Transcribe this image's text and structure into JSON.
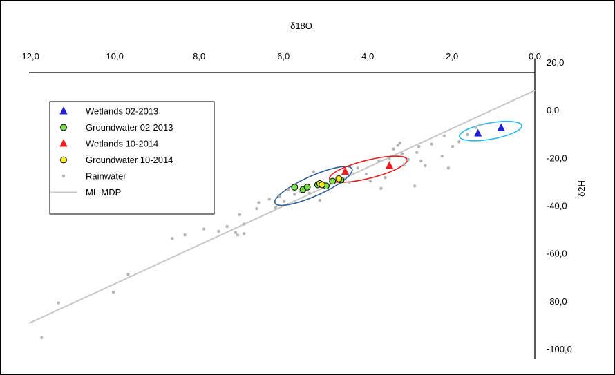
{
  "chart_data": {
    "type": "scatter",
    "xlabel": "δ18O",
    "ylabel": "δ2H",
    "xlim": [
      -12.0,
      0.0
    ],
    "ylim": [
      -100.0,
      20.0
    ],
    "x_ticks": [
      "-12,0",
      "-10,0",
      "-8,0",
      "-6,0",
      "-4,0",
      "-2,0",
      "0,0"
    ],
    "y_ticks": [
      "20,0",
      "0,0",
      "-20,0",
      "-40,0",
      "-60,0",
      "-80,0",
      "-100,0"
    ],
    "x_axis_position": "top",
    "y_axis_position": "right",
    "grid": false,
    "legend_position": "top-left",
    "series": [
      {
        "name": "Wetlands 02-2013",
        "marker": "triangle",
        "color": "#1f1fd6",
        "points": [
          [
            -1.35,
            -5.5
          ],
          [
            -0.8,
            -3.2
          ]
        ]
      },
      {
        "name": "Groundwater 02-2013",
        "marker": "circle",
        "color": "#7ee04a",
        "points": [
          [
            -5.7,
            -28.0
          ],
          [
            -5.5,
            -29.0
          ],
          [
            -5.4,
            -28.0
          ],
          [
            -5.15,
            -27.0
          ],
          [
            -4.95,
            -27.5
          ],
          [
            -4.8,
            -25.5
          ],
          [
            -4.6,
            -25.0
          ]
        ]
      },
      {
        "name": "Wetlands 10-2014",
        "marker": "triangle",
        "color": "#ee1c1c",
        "points": [
          [
            -4.5,
            -21.5
          ],
          [
            -3.45,
            -19.0
          ]
        ]
      },
      {
        "name": "Groundwater 10-2014",
        "marker": "circle",
        "color": "#f5ec22",
        "points": [
          [
            -5.1,
            -26.5
          ],
          [
            -5.05,
            -27.0
          ],
          [
            -4.65,
            -24.5
          ]
        ]
      },
      {
        "name": "Rainwater",
        "marker": "dot",
        "color": "#b5b5b5",
        "points": [
          [
            -11.7,
            -91.0
          ],
          [
            -11.3,
            -76.5
          ],
          [
            -10.0,
            -72.0
          ],
          [
            -9.65,
            -64.5
          ],
          [
            -8.6,
            -49.5
          ],
          [
            -8.3,
            -48.0
          ],
          [
            -7.85,
            -45.5
          ],
          [
            -7.5,
            -46.5
          ],
          [
            -7.3,
            -44.5
          ],
          [
            -7.1,
            -47.0
          ],
          [
            -7.05,
            -48.0
          ],
          [
            -6.9,
            -47.5
          ],
          [
            -7.0,
            -39.5
          ],
          [
            -6.9,
            -43.5
          ],
          [
            -6.6,
            -37.0
          ],
          [
            -6.3,
            -33.0
          ],
          [
            -6.15,
            -36.5
          ],
          [
            -6.05,
            -32.0
          ],
          [
            -5.85,
            -29.0
          ],
          [
            -5.55,
            -30.0
          ],
          [
            -5.25,
            -21.5
          ],
          [
            -5.1,
            -33.5
          ],
          [
            -4.9,
            -27.0
          ],
          [
            -4.6,
            -24.5
          ],
          [
            -4.2,
            -20.0
          ],
          [
            -4.0,
            -22.5
          ],
          [
            -3.9,
            -25.5
          ],
          [
            -3.7,
            -17.0
          ],
          [
            -3.65,
            -28.5
          ],
          [
            -3.45,
            -16.0
          ],
          [
            -3.35,
            -12.0
          ],
          [
            -3.25,
            -10.5
          ],
          [
            -3.2,
            -9.5
          ],
          [
            -3.15,
            -14.0
          ],
          [
            -3.1,
            -18.5
          ],
          [
            -3.0,
            -16.5
          ],
          [
            -2.85,
            -27.5
          ],
          [
            -2.8,
            -13.5
          ],
          [
            -2.75,
            -11.0
          ],
          [
            -2.7,
            -17.0
          ],
          [
            -2.6,
            -19.0
          ],
          [
            -2.45,
            -10.0
          ],
          [
            -2.2,
            -15.0
          ],
          [
            -2.15,
            -6.5
          ],
          [
            -2.05,
            -20.0
          ],
          [
            -1.95,
            -11.0
          ],
          [
            -1.8,
            -9.0
          ],
          [
            -1.6,
            -6.0
          ],
          [
            -1.4,
            -3.0
          ],
          [
            -1.3,
            -2.0
          ],
          [
            -6.55,
            -34.5
          ],
          [
            -5.95,
            -34.0
          ],
          [
            -5.7,
            -31.0
          ],
          [
            -5.35,
            -30.5
          ],
          [
            -4.4,
            -26.0
          ],
          [
            -3.55,
            -24.0
          ]
        ]
      },
      {
        "name": "ML-MDP",
        "marker": "line",
        "color": "#c8c8c8",
        "points": [
          [
            -12.0,
            -85.0
          ],
          [
            0.0,
            12.5
          ]
        ]
      }
    ],
    "ellipses": [
      {
        "center": [
          -5.25,
          -27.5
        ],
        "rx": 1.0,
        "ry": 4.2,
        "angle": -24,
        "color": "#2f5f95"
      },
      {
        "center": [
          -3.95,
          -20.5
        ],
        "rx": 0.95,
        "ry": 3.8,
        "angle": -14,
        "color": "#e81e1e"
      },
      {
        "center": [
          -1.05,
          -4.5
        ],
        "rx": 0.75,
        "ry": 3.4,
        "angle": -10,
        "color": "#27b9ee"
      }
    ]
  }
}
